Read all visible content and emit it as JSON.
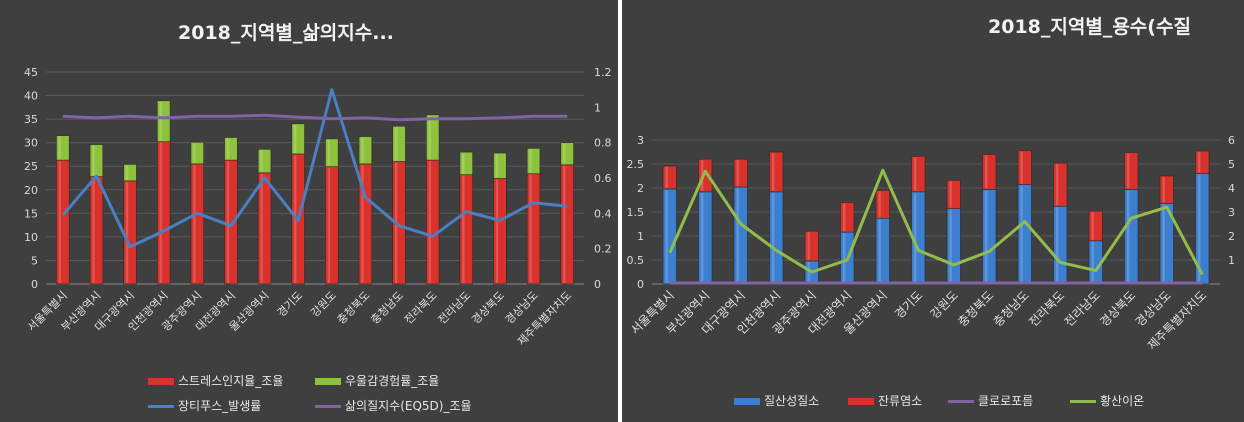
{
  "chart_data": [
    {
      "type": "bar",
      "title": "2018_지역별_삶의지수...",
      "categories": [
        "서울특별시",
        "부산광역시",
        "대구광역시",
        "인천광역시",
        "광주광역시",
        "대전광역시",
        "울산광역시",
        "경기도",
        "강원도",
        "충청북도",
        "충청남도",
        "전라북도",
        "전라남도",
        "경상북도",
        "경상남도",
        "제주특별자치도"
      ],
      "stacked": true,
      "series": [
        {
          "name": "스트레스인지율_조율",
          "kind": "bar",
          "axis": "left",
          "color": "#d9312b",
          "values": [
            26.3,
            22.8,
            21.9,
            30.2,
            25.5,
            26.3,
            23.6,
            27.6,
            24.9,
            25.5,
            26.0,
            26.3,
            23.2,
            22.4,
            23.4,
            25.3
          ]
        },
        {
          "name": "우울감경험률_조율",
          "kind": "bar",
          "axis": "left",
          "color": "#8fc23c",
          "values": [
            5.2,
            6.8,
            3.5,
            8.7,
            4.6,
            4.8,
            5.0,
            6.4,
            5.9,
            5.8,
            7.5,
            9.6,
            4.8,
            5.4,
            5.4,
            4.7
          ]
        },
        {
          "name": "장티푸스_발생률",
          "kind": "line",
          "axis": "right",
          "color": "#4a7fc1",
          "values": [
            0.39,
            0.61,
            0.21,
            0.3,
            0.4,
            0.33,
            0.6,
            0.36,
            1.1,
            0.49,
            0.33,
            0.27,
            0.41,
            0.36,
            0.46,
            0.44
          ]
        },
        {
          "name": "삶의질지수(EQ5D)_조율",
          "kind": "line",
          "axis": "right",
          "color": "#8064a2",
          "values": [
            0.95,
            0.94,
            0.95,
            0.94,
            0.95,
            0.95,
            0.955,
            0.945,
            0.935,
            0.94,
            0.93,
            0.935,
            0.935,
            0.94,
            0.95,
            0.95
          ]
        }
      ],
      "ylim": [
        0,
        45
      ],
      "yticks": [
        "0",
        "5",
        "10",
        "15",
        "20",
        "25",
        "30",
        "35",
        "40",
        "45"
      ],
      "y2lim": [
        0,
        1.2
      ],
      "y2ticks": [
        "0",
        "0.2",
        "0.4",
        "0.6",
        "0.8",
        "1",
        "1.2"
      ],
      "grid": true,
      "legend": "bottom"
    },
    {
      "type": "bar",
      "title": "2018_지역별_용수(수질",
      "categories": [
        "서울특별시",
        "부산광역시",
        "대구광역시",
        "인천광역시",
        "광주광역시",
        "대전광역시",
        "울산광역시",
        "경기도",
        "강원도",
        "충청북도",
        "충청남도",
        "전라북도",
        "전라남도",
        "경상북도",
        "경상남도",
        "제주특별자치도"
      ],
      "stacked": true,
      "series": [
        {
          "name": "질산성질소",
          "kind": "bar",
          "axis": "left",
          "color": "#3d7fcf",
          "values": [
            1.98,
            1.92,
            2.02,
            1.92,
            0.48,
            1.08,
            1.37,
            1.92,
            1.57,
            1.97,
            2.07,
            1.62,
            0.9,
            1.97,
            1.68,
            2.3
          ]
        },
        {
          "name": "잔류염소",
          "kind": "bar",
          "axis": "left",
          "color": "#d9312b",
          "values": [
            0.48,
            0.68,
            0.58,
            0.83,
            0.62,
            0.62,
            0.58,
            0.74,
            0.59,
            0.73,
            0.71,
            0.9,
            0.62,
            0.77,
            0.57,
            0.47
          ]
        },
        {
          "name": "클로로포름",
          "kind": "line",
          "axis": "left",
          "color": "#8064a2",
          "values": [
            0.02,
            0.02,
            0.02,
            0.02,
            0.02,
            0.02,
            0.02,
            0.02,
            0.02,
            0.02,
            0.02,
            0.02,
            0.02,
            0.02,
            0.02,
            0.02
          ]
        },
        {
          "name": "황산이온",
          "kind": "line",
          "axis": "left",
          "color": "#93bd4a",
          "values": [
            0.65,
            2.35,
            1.25,
            0.7,
            0.25,
            0.5,
            2.37,
            0.7,
            0.4,
            0.68,
            1.3,
            0.45,
            0.28,
            1.37,
            1.6,
            0.2
          ]
        }
      ],
      "ylim": [
        0,
        3
      ],
      "yticks": [
        "0",
        "0.5",
        "1",
        "1.5",
        "2",
        "2.5",
        "3"
      ],
      "y2ticks_partial": [
        "1",
        "2",
        "3",
        "4",
        "5",
        "6"
      ],
      "grid": true,
      "legend": "bottom"
    }
  ]
}
